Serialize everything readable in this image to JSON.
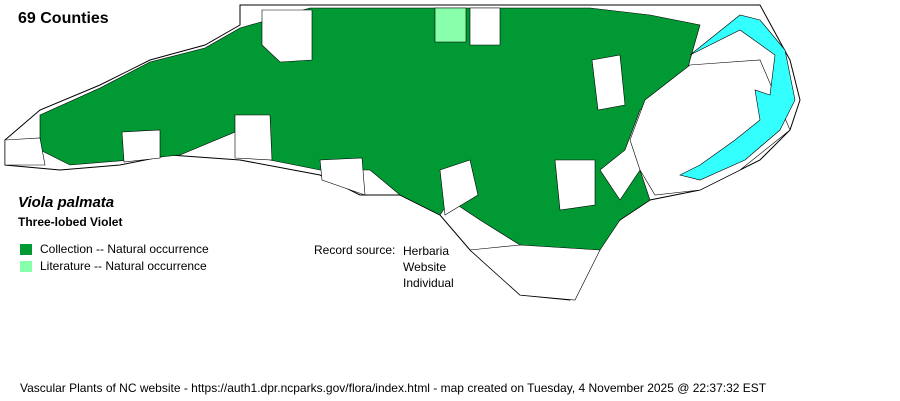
{
  "header": {
    "county_count": "69 Counties"
  },
  "species": {
    "scientific_name": "Viola palmata",
    "common_name": "Three-lobed Violet"
  },
  "legend": [
    {
      "label": "Collection -- Natural occurrence",
      "color": "#009933"
    },
    {
      "label": "Literature -- Natural occurrence",
      "color": "#88ffaa"
    }
  ],
  "record_source": {
    "label": "Record source:",
    "values": [
      "Herbaria",
      "Website",
      "Individual"
    ]
  },
  "map": {
    "state": "North Carolina",
    "water_color": "#33ffff",
    "absent_color": "#ffffff"
  },
  "footer": "Vascular Plants of NC website - https://auth1.dpr.ncparks.gov/flora/index.html - map created on Tuesday, 4 November 2025 @ 22:37:32 EST"
}
